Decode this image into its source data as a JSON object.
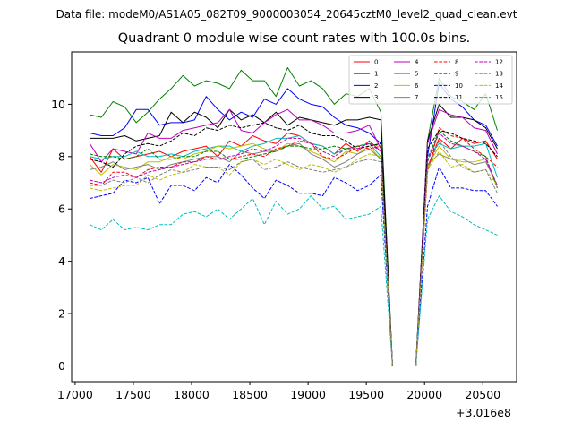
{
  "suptitle": "Data file: modeM0/AS1A05_082T09_9000003054_20645cztM0_level2_quad_clean.evt",
  "chart_data": {
    "type": "line",
    "title": "Quadrant 0 module wise count rates with 100.0s bins.",
    "xlabel": "",
    "ylabel": "",
    "x_offset_label": "+3.016e8",
    "xlim": [
      16970,
      20790
    ],
    "ylim": [
      -0.6,
      12.0
    ],
    "xticks": [
      17000,
      17500,
      18000,
      18500,
      19000,
      19500,
      20000,
      20500
    ],
    "yticks": [
      0,
      2,
      4,
      6,
      8,
      10
    ],
    "legend_loc": "top-right",
    "grid": false,
    "x": [
      17125,
      17225,
      17325,
      17425,
      17525,
      17625,
      17725,
      17825,
      17925,
      18025,
      18125,
      18225,
      18325,
      18425,
      18525,
      18625,
      18725,
      18825,
      18925,
      19025,
      19125,
      19225,
      19325,
      19425,
      19525,
      19625,
      19725,
      19825,
      19925,
      20025,
      20125,
      20225,
      20325,
      20425,
      20525,
      20625
    ],
    "series": [
      {
        "name": "0",
        "color": "#ff0000",
        "dash": false,
        "values": [
          8.0,
          7.4,
          8.3,
          7.9,
          8.0,
          8.1,
          8.2,
          8.0,
          8.2,
          8.3,
          8.4,
          8.0,
          8.6,
          8.4,
          8.8,
          8.6,
          8.5,
          8.9,
          8.8,
          8.5,
          8.4,
          8.1,
          8.5,
          8.2,
          8.6,
          8.2,
          0.0,
          0.0,
          0.0,
          7.6,
          8.7,
          8.3,
          8.7,
          8.5,
          8.6,
          7.9
        ]
      },
      {
        "name": "1",
        "color": "#008000",
        "dash": false,
        "values": [
          9.6,
          9.5,
          10.1,
          9.9,
          9.3,
          9.7,
          10.2,
          10.6,
          11.1,
          10.7,
          10.9,
          10.8,
          10.6,
          11.3,
          10.9,
          10.9,
          10.3,
          11.4,
          10.7,
          10.9,
          10.6,
          10.0,
          10.4,
          10.3,
          10.6,
          9.7,
          0.0,
          0.0,
          0.0,
          8.6,
          11.0,
          10.3,
          10.1,
          9.8,
          10.4,
          9.0
        ]
      },
      {
        "name": "2",
        "color": "#0000ff",
        "dash": false,
        "values": [
          8.9,
          8.8,
          8.8,
          9.1,
          9.8,
          9.8,
          9.2,
          9.3,
          9.3,
          9.4,
          10.3,
          9.8,
          9.4,
          9.7,
          9.5,
          10.2,
          10.0,
          10.6,
          10.2,
          10.0,
          9.9,
          9.5,
          9.2,
          9.1,
          8.9,
          8.5,
          0.0,
          0.0,
          0.0,
          8.0,
          10.8,
          10.2,
          9.9,
          9.4,
          9.2,
          8.4
        ]
      },
      {
        "name": "3",
        "color": "#000000",
        "dash": false,
        "values": [
          8.7,
          8.7,
          8.7,
          8.8,
          8.6,
          8.7,
          8.8,
          9.7,
          9.3,
          9.7,
          9.5,
          9.1,
          9.8,
          9.4,
          9.6,
          9.3,
          9.7,
          9.2,
          9.5,
          9.4,
          9.3,
          9.2,
          9.4,
          9.4,
          9.5,
          9.4,
          0.0,
          0.0,
          0.0,
          8.6,
          10.0,
          9.5,
          9.5,
          9.4,
          9.1,
          8.3
        ]
      },
      {
        "name": "4",
        "color": "#bf00bf",
        "dash": false,
        "values": [
          8.5,
          7.8,
          8.3,
          8.2,
          8.1,
          8.9,
          8.7,
          8.7,
          9.0,
          9.1,
          9.2,
          9.3,
          9.8,
          9.0,
          8.9,
          9.3,
          9.6,
          9.8,
          9.4,
          9.4,
          9.2,
          8.9,
          8.9,
          9.0,
          9.2,
          8.3,
          0.0,
          0.0,
          0.0,
          8.5,
          9.8,
          9.6,
          9.5,
          9.1,
          9.0,
          8.1
        ]
      },
      {
        "name": "5",
        "color": "#00bfbf",
        "dash": false,
        "values": [
          8.0,
          7.9,
          8.0,
          8.0,
          8.2,
          8.0,
          8.0,
          8.1,
          8.0,
          8.2,
          8.3,
          8.4,
          8.4,
          8.2,
          8.4,
          8.5,
          8.7,
          8.7,
          8.8,
          8.5,
          8.4,
          8.1,
          8.3,
          8.4,
          8.5,
          8.0,
          0.0,
          0.0,
          0.0,
          8.0,
          8.5,
          8.3,
          8.4,
          8.4,
          8.5,
          7.2
        ]
      },
      {
        "name": "6",
        "color": "#bfbf00",
        "dash": false,
        "values": [
          7.7,
          7.3,
          7.7,
          7.6,
          7.5,
          7.8,
          7.8,
          8.0,
          7.9,
          8.1,
          8.2,
          8.4,
          8.3,
          8.4,
          8.5,
          8.3,
          8.2,
          8.5,
          8.4,
          8.2,
          8.0,
          7.8,
          8.2,
          8.1,
          8.4,
          7.9,
          0.0,
          0.0,
          0.0,
          7.6,
          8.4,
          7.9,
          7.8,
          7.8,
          7.9,
          6.8
        ]
      },
      {
        "name": "7",
        "color": "#808080",
        "dash": false,
        "values": [
          7.5,
          7.6,
          7.8,
          7.5,
          7.6,
          7.7,
          7.5,
          7.7,
          7.8,
          7.9,
          8.0,
          8.0,
          7.8,
          8.2,
          8.1,
          8.2,
          8.2,
          8.4,
          8.5,
          8.1,
          7.9,
          7.6,
          7.8,
          8.1,
          8.3,
          7.9,
          0.0,
          0.0,
          0.0,
          7.7,
          8.1,
          7.9,
          7.9,
          7.7,
          7.8,
          6.9
        ]
      },
      {
        "name": "8",
        "color": "#ff0000",
        "dash": true,
        "values": [
          7.0,
          6.9,
          7.4,
          7.4,
          7.2,
          7.5,
          7.6,
          7.6,
          7.8,
          7.8,
          8.0,
          7.9,
          7.9,
          8.0,
          8.1,
          8.0,
          8.3,
          8.4,
          8.6,
          8.5,
          8.0,
          7.9,
          8.1,
          8.4,
          8.3,
          8.4,
          0.0,
          0.0,
          0.0,
          7.4,
          9.1,
          8.8,
          8.7,
          8.3,
          8.0,
          7.6
        ]
      },
      {
        "name": "9",
        "color": "#008000",
        "dash": true,
        "values": [
          8.1,
          8.0,
          8.0,
          7.9,
          8.0,
          8.3,
          7.9,
          7.9,
          8.0,
          8.0,
          8.2,
          8.2,
          7.9,
          7.9,
          8.0,
          8.1,
          8.2,
          8.4,
          8.4,
          8.3,
          8.3,
          8.4,
          8.3,
          8.4,
          8.5,
          8.4,
          0.0,
          0.0,
          0.0,
          7.9,
          9.0,
          8.6,
          8.4,
          8.2,
          8.0,
          6.8
        ]
      },
      {
        "name": "10",
        "color": "#0000ff",
        "dash": true,
        "values": [
          6.4,
          6.5,
          6.6,
          7.1,
          7.0,
          7.2,
          6.2,
          6.9,
          6.9,
          6.7,
          7.2,
          7.0,
          7.7,
          7.3,
          6.8,
          6.4,
          7.1,
          6.9,
          6.6,
          6.6,
          6.5,
          7.2,
          7.0,
          6.7,
          6.9,
          7.3,
          0.0,
          0.0,
          0.0,
          6.1,
          7.6,
          6.8,
          6.8,
          6.7,
          6.7,
          6.1
        ]
      },
      {
        "name": "11",
        "color": "#000000",
        "dash": true,
        "values": [
          7.9,
          7.8,
          7.6,
          8.1,
          8.4,
          8.5,
          8.4,
          8.6,
          8.9,
          8.8,
          9.1,
          9.0,
          9.2,
          9.1,
          9.2,
          9.3,
          9.1,
          9.0,
          9.2,
          8.9,
          8.8,
          8.8,
          8.6,
          8.3,
          8.4,
          8.5,
          0.0,
          0.0,
          0.0,
          8.3,
          9.0,
          8.9,
          8.7,
          8.6,
          8.5,
          8.0
        ]
      },
      {
        "name": "12",
        "color": "#bf00bf",
        "dash": true,
        "values": [
          7.1,
          7.0,
          7.2,
          7.3,
          7.2,
          7.4,
          7.5,
          7.6,
          7.7,
          7.8,
          7.9,
          7.9,
          8.0,
          8.1,
          8.3,
          8.2,
          8.4,
          8.7,
          8.7,
          8.5,
          8.2,
          8.0,
          8.3,
          8.3,
          8.5,
          8.2,
          0.0,
          0.0,
          0.0,
          7.8,
          8.9,
          8.5,
          8.4,
          8.2,
          7.9,
          6.9
        ]
      },
      {
        "name": "13",
        "color": "#00bfbf",
        "dash": true,
        "values": [
          5.4,
          5.2,
          5.6,
          5.2,
          5.3,
          5.2,
          5.4,
          5.4,
          5.8,
          5.9,
          5.7,
          6.0,
          5.6,
          6.0,
          6.4,
          5.4,
          6.3,
          5.8,
          6.0,
          6.5,
          6.0,
          6.1,
          5.6,
          5.7,
          5.8,
          6.1,
          0.0,
          0.0,
          0.0,
          5.6,
          6.5,
          5.9,
          5.7,
          5.4,
          5.2,
          5.0
        ]
      },
      {
        "name": "14",
        "color": "#bfbf00",
        "dash": true,
        "values": [
          6.8,
          6.7,
          6.8,
          6.9,
          6.9,
          7.3,
          7.1,
          7.3,
          7.4,
          7.7,
          7.6,
          7.6,
          7.3,
          7.8,
          7.9,
          7.7,
          7.9,
          7.7,
          7.5,
          7.7,
          7.6,
          7.4,
          7.6,
          7.9,
          8.1,
          8.0,
          0.0,
          0.0,
          0.0,
          7.5,
          8.2,
          7.6,
          7.7,
          7.4,
          7.5,
          6.9
        ]
      },
      {
        "name": "15",
        "color": "#808080",
        "dash": true,
        "values": [
          6.9,
          6.9,
          7.1,
          7.0,
          7.2,
          7.0,
          7.3,
          7.5,
          7.4,
          7.5,
          7.6,
          7.6,
          7.5,
          7.8,
          7.9,
          7.5,
          7.6,
          7.8,
          7.6,
          7.5,
          7.4,
          7.5,
          7.6,
          7.8,
          7.9,
          7.8,
          0.0,
          0.0,
          0.0,
          7.5,
          8.6,
          8.0,
          7.6,
          7.4,
          7.5,
          6.6
        ]
      }
    ]
  }
}
